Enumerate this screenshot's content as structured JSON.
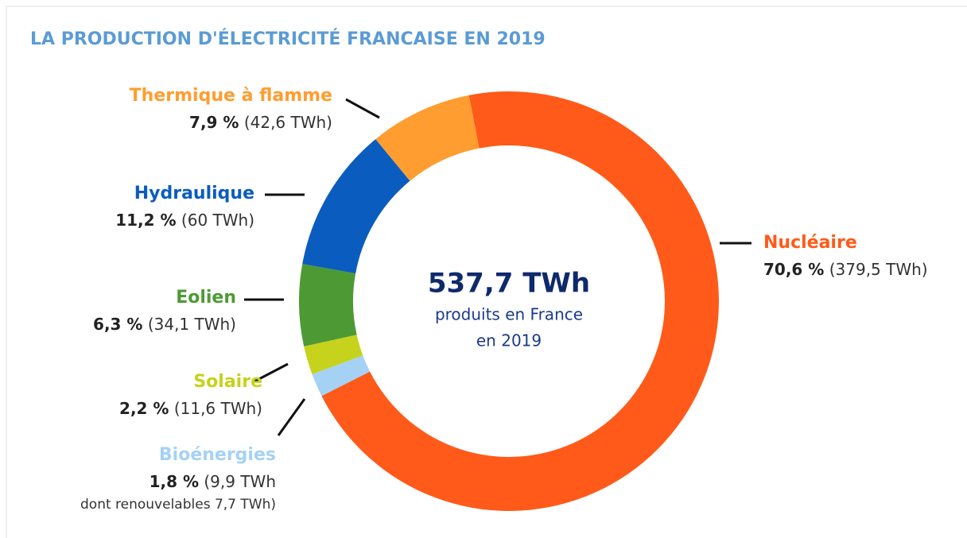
{
  "chart_data": {
    "type": "donut",
    "title": "LA PRODUCTION D'ÉLECTRICITÉ FRANCAISE EN 2019",
    "categories": [
      "Nucléaire",
      "Bioénergies",
      "Solaire",
      "Eolien",
      "Hydraulique",
      "Thermique à flamme"
    ],
    "values": [
      70.6,
      1.8,
      2.2,
      6.3,
      11.2,
      7.9
    ],
    "value_labels": [
      "70,6 %",
      "1,8 %",
      "2,2 %",
      "6,3 %",
      "11,2 %",
      "7,9 %"
    ],
    "details": [
      "(379,5 TWh)",
      "(9,9 TWh",
      "(11,6 TWh)",
      "(34,1 TWh)",
      "(60 TWh)",
      "(42,6 TWh)"
    ],
    "note": "dont renouvelables 7,7 TWh)",
    "colors": [
      "#ff5a1a",
      "#a5d2f4",
      "#c6d21b",
      "#4d9a34",
      "#0b5cbf",
      "#ff9d30"
    ],
    "center_value": "537,7 TWh",
    "center_text": [
      "produits en France",
      "en 2019"
    ]
  }
}
